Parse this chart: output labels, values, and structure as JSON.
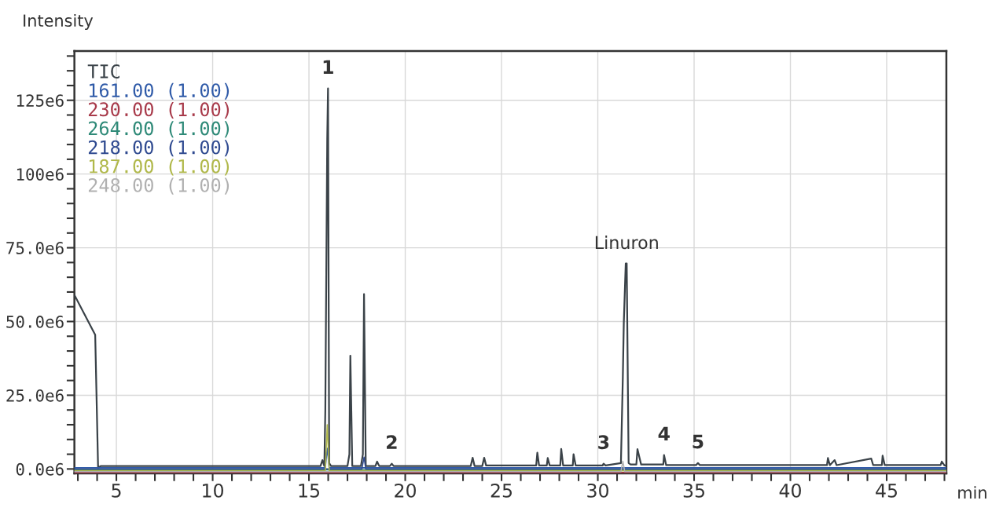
{
  "chart_data": {
    "type": "line",
    "ylabel": "Intensity",
    "xlabel": "min",
    "xlim": [
      2.82,
      48.1
    ],
    "ylim": [
      -1500000,
      141700000
    ],
    "xticks": [
      {
        "value": 3,
        "label": null
      },
      {
        "value": 4,
        "label": null
      },
      5,
      {
        "value": 6,
        "label": null
      },
      {
        "value": 7,
        "label": null
      },
      {
        "value": 8,
        "label": null
      },
      {
        "value": 9,
        "label": null
      },
      10,
      {
        "value": 11,
        "label": null
      },
      {
        "value": 12,
        "label": null
      },
      {
        "value": 13,
        "label": null
      },
      {
        "value": 14,
        "label": null
      },
      15,
      {
        "value": 16,
        "label": null
      },
      {
        "value": 17,
        "label": null
      },
      {
        "value": 18,
        "label": null
      },
      {
        "value": 19,
        "label": null
      },
      20,
      {
        "value": 21,
        "label": null
      },
      {
        "value": 22,
        "label": null
      },
      {
        "value": 23,
        "label": null
      },
      {
        "value": 24,
        "label": null
      },
      25,
      {
        "value": 26,
        "label": null
      },
      {
        "value": 27,
        "label": null
      },
      {
        "value": 28,
        "label": null
      },
      {
        "value": 29,
        "label": null
      },
      30,
      {
        "value": 31,
        "label": null
      },
      {
        "value": 32,
        "label": null
      },
      {
        "value": 33,
        "label": null
      },
      {
        "value": 34,
        "label": null
      },
      35,
      {
        "value": 36,
        "label": null
      },
      {
        "value": 37,
        "label": null
      },
      {
        "value": 38,
        "label": null
      },
      {
        "value": 39,
        "label": null
      },
      40,
      {
        "value": 41,
        "label": null
      },
      {
        "value": 42,
        "label": null
      },
      {
        "value": 43,
        "label": null
      },
      {
        "value": 44,
        "label": null
      },
      45,
      {
        "value": 46,
        "label": null
      },
      {
        "value": 47,
        "label": null
      },
      {
        "value": 48,
        "label": null
      }
    ],
    "yticks": [
      {
        "value": 0,
        "label": "0.0e6"
      },
      {
        "value": 5000000,
        "label": null
      },
      {
        "value": 10000000,
        "label": null
      },
      {
        "value": 15000000,
        "label": null
      },
      {
        "value": 20000000,
        "label": null
      },
      {
        "value": 25000000,
        "label": "25.0e6"
      },
      {
        "value": 30000000,
        "label": null
      },
      {
        "value": 35000000,
        "label": null
      },
      {
        "value": 40000000,
        "label": null
      },
      {
        "value": 45000000,
        "label": null
      },
      {
        "value": 50000000,
        "label": "50.0e6"
      },
      {
        "value": 55000000,
        "label": null
      },
      {
        "value": 60000000,
        "label": null
      },
      {
        "value": 65000000,
        "label": null
      },
      {
        "value": 70000000,
        "label": null
      },
      {
        "value": 75000000,
        "label": "75.0e6"
      },
      {
        "value": 80000000,
        "label": null
      },
      {
        "value": 85000000,
        "label": null
      },
      {
        "value": 90000000,
        "label": null
      },
      {
        "value": 95000000,
        "label": null
      },
      {
        "value": 100000000,
        "label": "100e6"
      },
      {
        "value": 105000000,
        "label": null
      },
      {
        "value": 110000000,
        "label": null
      },
      {
        "value": 115000000,
        "label": null
      },
      {
        "value": 120000000,
        "label": null
      },
      {
        "value": 125000000,
        "label": "125e6"
      },
      {
        "value": 130000000,
        "label": null
      },
      {
        "value": 135000000,
        "label": null
      },
      {
        "value": 140000000,
        "label": null
      }
    ],
    "grid": true,
    "legend": "top left",
    "marker": "none",
    "line_style": "solid",
    "series": [
      {
        "name": "TIC",
        "color": "#3a4248",
        "x": [
          2.82,
          3.9,
          4.05,
          4.2,
          15.6,
          15.7,
          15.8,
          15.85,
          15.95,
          15.99,
          16.05,
          16.15,
          17.0,
          17.1,
          17.15,
          17.25,
          17.7,
          17.8,
          17.86,
          17.95,
          18.45,
          18.54,
          18.65,
          19.2,
          19.3,
          19.4,
          23.4,
          23.5,
          23.6,
          24.0,
          24.1,
          24.2,
          26.8,
          26.86,
          26.95,
          27.35,
          27.4,
          27.5,
          28.05,
          28.1,
          28.2,
          28.7,
          28.74,
          28.85,
          30.25,
          30.3,
          30.4,
          31.2,
          31.3,
          31.35,
          31.45,
          31.5,
          31.6,
          31.7,
          32.0,
          32.06,
          32.25,
          33.4,
          33.44,
          33.55,
          35.1,
          35.2,
          35.3,
          41.9,
          41.95,
          42.05,
          42.3,
          42.4,
          44.2,
          44.3,
          44.75,
          44.79,
          44.9,
          47.8,
          47.86,
          48.0,
          48.1
        ],
        "values": [
          59000000,
          45500000,
          500000,
          1000000,
          1000000,
          3000000,
          1000000,
          20000000,
          112000000,
          129000000,
          2000000,
          1000000,
          1000000,
          5000000,
          38400000,
          1000000,
          1000000,
          5000000,
          59300000,
          1000000,
          1000000,
          2500000,
          1000000,
          1000000,
          1800000,
          1000000,
          1000000,
          3800000,
          1000000,
          1000000,
          3800000,
          1200000,
          1200000,
          5500000,
          1200000,
          1200000,
          3700000,
          1200000,
          1200000,
          6800000,
          1200000,
          1200000,
          5000000,
          1200000,
          1200000,
          1800000,
          1200000,
          2000000,
          31300000,
          49700000,
          69700000,
          69700000,
          2000000,
          1500000,
          1500000,
          6700000,
          1500000,
          1500000,
          4700000,
          1300000,
          1300000,
          2000000,
          1300000,
          1300000,
          3700000,
          1300000,
          3000000,
          1300000,
          3500000,
          1300000,
          1300000,
          4500000,
          1300000,
          1300000,
          2500000,
          1200000,
          1200000
        ]
      },
      {
        "name": "161.00 (1.00)",
        "color": "#2f5aa8",
        "x": [
          2.82,
          15.85,
          15.95,
          16.05,
          48.1
        ],
        "values": [
          400000,
          400000,
          7000000,
          400000,
          400000
        ]
      },
      {
        "name": "230.00 (1.00)",
        "color": "#a83a4a",
        "x": [
          2.82,
          48.1
        ],
        "values": [
          -1200000,
          -1200000
        ]
      },
      {
        "name": "264.00 (1.00)",
        "color": "#2f8a78",
        "x": [
          2.82,
          48.1
        ],
        "values": [
          -300000,
          -300000
        ]
      },
      {
        "name": "218.00 (1.00)",
        "color": "#2f4a90",
        "x": [
          2.82,
          17.75,
          17.86,
          17.95,
          48.1
        ],
        "values": [
          0,
          0,
          4000000,
          0,
          0
        ]
      },
      {
        "name": "187.00 (1.00)",
        "color": "#b0b84a",
        "x": [
          2.82,
          15.85,
          15.95,
          16.05,
          48.1
        ],
        "values": [
          -600000,
          -600000,
          15000000,
          -600000,
          -600000
        ]
      },
      {
        "name": "248.00 (1.00)",
        "color": "#b0b0b0",
        "x": [
          2.82,
          31.2,
          31.3,
          31.4,
          48.1
        ],
        "values": [
          -900000,
          -900000,
          2600000,
          -900000,
          -900000
        ]
      }
    ],
    "annotations": [
      {
        "text": "1",
        "x": 15.99,
        "y": 129000000
      },
      {
        "text": "2",
        "x": 19.3,
        "y": 1800000
      },
      {
        "text": "3",
        "x": 30.3,
        "y": 1800000
      },
      {
        "text": "4",
        "x": 33.44,
        "y": 4700000
      },
      {
        "text": "5",
        "x": 35.2,
        "y": 2000000
      },
      {
        "text": "Linuron",
        "x": 31.5,
        "y": 69700000
      }
    ]
  }
}
